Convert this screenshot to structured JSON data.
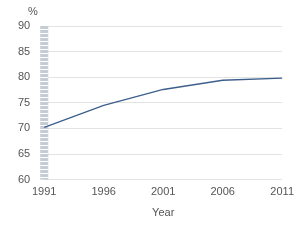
{
  "chart_data": {
    "type": "line",
    "y_label": "%",
    "x_label": "Year",
    "categories": [
      "1991",
      "1996",
      "2001",
      "2006",
      "2011"
    ],
    "values": [
      70.2,
      74.5,
      77.6,
      79.4,
      79.8
    ],
    "color": "#3d5f8c",
    "ylim": [
      60,
      90
    ],
    "yticks": [
      60,
      65,
      70,
      75,
      80,
      85,
      90
    ],
    "grid": true
  }
}
